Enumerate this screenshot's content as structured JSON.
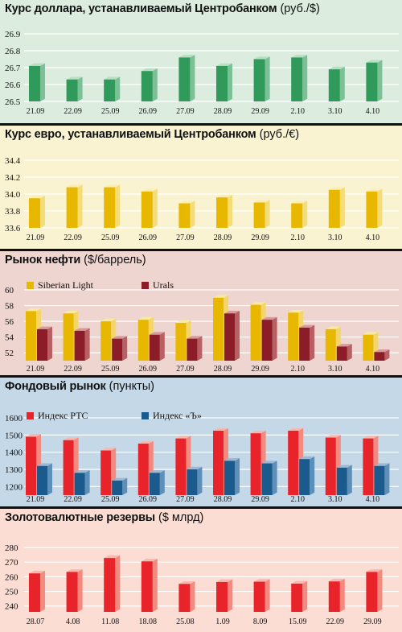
{
  "chart_data": [
    {
      "type": "bar",
      "title": "Курс доллара, устанавливаемый Центробанком",
      "unit": "(руб./$)",
      "colors": {
        "background": "#dcede0",
        "grid": "#ffffff",
        "bar_front": "#2f9a5a",
        "bar_side": "#7cc195",
        "bar_top": "#b8dfc4"
      },
      "categories": [
        "21.09",
        "22.09",
        "25.09",
        "26.09",
        "27.09",
        "28.09",
        "29.09",
        "2.10",
        "3.10",
        "4.10"
      ],
      "series": [
        {
          "values": [
            26.71,
            26.63,
            26.63,
            26.68,
            26.76,
            26.71,
            26.75,
            26.76,
            26.69,
            26.73
          ]
        }
      ],
      "ylim": [
        26.5,
        26.9
      ],
      "yticks": [
        26.5,
        26.6,
        26.7,
        26.8,
        26.9
      ],
      "ytick_labels": [
        "26.5",
        "26.6",
        "26.7",
        "26.8",
        "26.9"
      ],
      "grid": true
    },
    {
      "type": "bar",
      "title": "Курс евро, устанавливаемый Центробанком",
      "unit": "(руб./€)",
      "colors": {
        "background": "#faf3d2",
        "grid": "#ffffff",
        "bar_front": "#e8b800",
        "bar_side": "#f4dc78",
        "bar_top": "#fbeeb2"
      },
      "categories": [
        "21.09",
        "22.09",
        "25.09",
        "26.09",
        "27.09",
        "28.09",
        "29.09",
        "2.10",
        "3.10",
        "4.10"
      ],
      "series": [
        {
          "values": [
            33.95,
            34.08,
            34.08,
            34.03,
            33.89,
            33.96,
            33.9,
            33.89,
            34.05,
            34.03
          ]
        }
      ],
      "ylim": [
        33.6,
        34.4
      ],
      "yticks": [
        33.6,
        33.8,
        34.0,
        34.2,
        34.4
      ],
      "ytick_labels": [
        "33.6",
        "33.8",
        "34.0",
        "34.2",
        "34.4"
      ],
      "grid": true
    },
    {
      "type": "bar",
      "title": "Рынок нефти",
      "unit": "($/баррель)",
      "colors": {
        "background": "#efd5d0",
        "grid": "#ffffff"
      },
      "categories": [
        "21.09",
        "22.09",
        "25.09",
        "26.09",
        "27.09",
        "28.09",
        "29.09",
        "2.10",
        "3.10",
        "4.10"
      ],
      "series": [
        {
          "name": "Siberian Light",
          "color": "#e8b800",
          "side": "#f3d56a",
          "top": "#faeaa0",
          "values": [
            57.3,
            57.0,
            56.0,
            56.2,
            55.8,
            59.0,
            58.1,
            57.1,
            55.0,
            54.3
          ]
        },
        {
          "name": "Urals",
          "color": "#8c1c28",
          "side": "#b96064",
          "top": "#d89a9c",
          "values": [
            55.0,
            54.8,
            53.8,
            54.3,
            53.8,
            57.0,
            56.2,
            55.2,
            52.8,
            52.1
          ]
        }
      ],
      "ylim": [
        51,
        60
      ],
      "yticks": [
        52,
        54,
        56,
        58,
        60
      ],
      "ytick_labels": [
        "52",
        "54",
        "56",
        "58",
        "60"
      ],
      "legend_position": "top-left",
      "grid": true
    },
    {
      "type": "bar",
      "title": "Фондовый рынок",
      "unit": "(пункты)",
      "colors": {
        "background": "#c5d8e8",
        "grid": "#ffffff"
      },
      "categories": [
        "21.09",
        "22.09",
        "25.09",
        "26.09",
        "27.09",
        "28.09",
        "29.09",
        "2.10",
        "3.10",
        "4.10"
      ],
      "series": [
        {
          "name": "Индекс РТС",
          "color": "#e8232a",
          "side": "#f28a80",
          "top": "#f7b8b0",
          "values": [
            1490,
            1470,
            1410,
            1450,
            1480,
            1525,
            1510,
            1525,
            1485,
            1480
          ]
        },
        {
          "name": "Индекс «Ъ»",
          "color": "#1b5a8c",
          "side": "#5e8fb8",
          "top": "#9dbad4",
          "values": [
            1320,
            1280,
            1235,
            1280,
            1300,
            1350,
            1335,
            1360,
            1310,
            1320
          ]
        }
      ],
      "ylim": [
        1150,
        1600
      ],
      "yticks": [
        1200,
        1300,
        1400,
        1500,
        1600
      ],
      "ytick_labels": [
        "1200",
        "1300",
        "1400",
        "1500",
        "1600"
      ],
      "legend_position": "top-left",
      "grid": true
    },
    {
      "type": "bar",
      "title": "Золотовалютные резервы",
      "unit": "($ млрд)",
      "colors": {
        "background": "#fbddd3",
        "grid": "#ffffff",
        "bar_front": "#e8232a",
        "bar_side": "#f28a80",
        "bar_top": "#f7b8b0"
      },
      "categories": [
        "28.07",
        "4.08",
        "11.08",
        "18.08",
        "25.08",
        "1.09",
        "8.09",
        "15.09",
        "22.09",
        "29.09"
      ],
      "series": [
        {
          "values": [
            262.3,
            263.3,
            272.8,
            270.5,
            255.1,
            256.4,
            256.6,
            255.3,
            256.8,
            263.3
          ]
        }
      ],
      "ylim": [
        236,
        280
      ],
      "yticks": [
        240,
        250,
        260,
        270,
        280
      ],
      "ytick_labels": [
        "240",
        "250",
        "260",
        "270",
        "280"
      ],
      "grid": true
    }
  ]
}
